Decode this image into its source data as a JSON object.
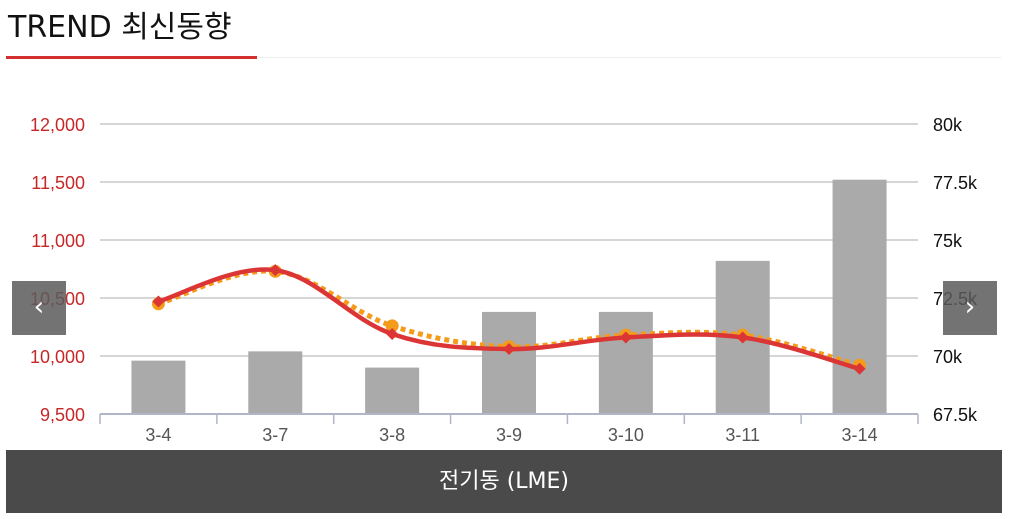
{
  "header": {
    "title": "TREND 최신동향"
  },
  "caption": {
    "label": "전기동 (LME)"
  },
  "nav": {
    "prev_symbol": "‹",
    "next_symbol": "›"
  },
  "colors": {
    "bar": "#aaaaaa",
    "line_main": "#dc3535",
    "line_dotted": "#f59b1a",
    "left_axis_text": "#c62828",
    "title_rule": "#d32f2f",
    "caption_bg": "#4a4a4a"
  },
  "chart_data": {
    "type": "bar",
    "categories": [
      "3-4",
      "3-7",
      "3-8",
      "3-9",
      "3-10",
      "3-11",
      "3-14"
    ],
    "left_axis": {
      "ylim": [
        9500,
        12000
      ],
      "ticks": [
        9500,
        10000,
        10500,
        11000,
        11500,
        12000
      ],
      "tick_labels": [
        "9,500",
        "10,000",
        "10,500",
        "11,000",
        "11,500",
        "12,000"
      ]
    },
    "right_axis": {
      "ylim": [
        67500,
        80000
      ],
      "ticks": [
        67500,
        70000,
        72500,
        75000,
        77500,
        80000
      ],
      "tick_labels": [
        "67.5k",
        "70k",
        "72.5k",
        "75k",
        "77.5k",
        "80k"
      ]
    },
    "series": [
      {
        "kind": "bar",
        "axis": "right",
        "values": [
          69800,
          70200,
          69500,
          71900,
          71900,
          74100,
          77600
        ]
      },
      {
        "kind": "line",
        "style": "solid",
        "axis": "left",
        "marker": "diamond",
        "values": [
          10470,
          10740,
          10190,
          10060,
          10160,
          10160,
          9890
        ]
      },
      {
        "kind": "line",
        "style": "dotted",
        "axis": "left",
        "marker": "circle",
        "values": [
          10450,
          10730,
          10260,
          10080,
          10180,
          10180,
          9920
        ]
      }
    ],
    "grid": true,
    "legend": "none"
  }
}
